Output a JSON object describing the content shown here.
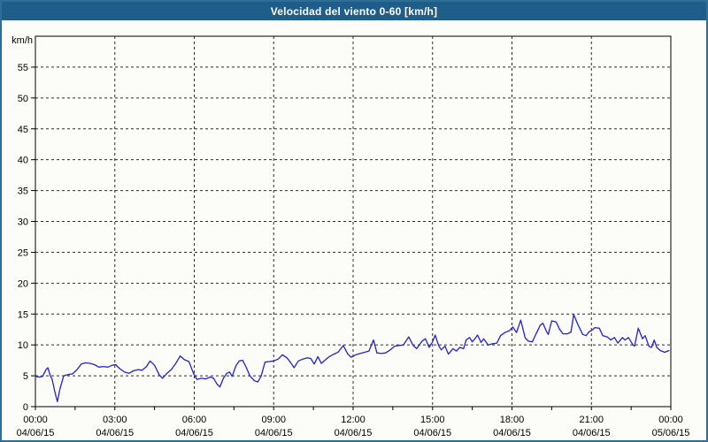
{
  "window": {
    "title": "Velocidad del viento 0-60 [km/h]"
  },
  "colors": {
    "titlebar_bg": "#1f5d8b",
    "titlebar_text": "#ffffff",
    "frame_border": "#2e6e96",
    "chart_bg": "#fcfdf8",
    "grid": "#2b2b2b",
    "axis": "#000000",
    "line": "#2323cb"
  },
  "chart_data": {
    "type": "line",
    "title": "Velocidad del viento 0-60 [km/h]",
    "xlabel": "",
    "ylabel": "km/h",
    "ylim": [
      0,
      60
    ],
    "y_ticks": [
      0,
      5,
      10,
      15,
      20,
      25,
      30,
      35,
      40,
      45,
      50,
      55
    ],
    "xlim_hours": [
      0,
      24
    ],
    "grid": "dashed",
    "legend_position": "none",
    "x_ticks": [
      {
        "hour": 0,
        "time": "00:00",
        "date": "04/06/15"
      },
      {
        "hour": 3,
        "time": "03:00",
        "date": "04/06/15"
      },
      {
        "hour": 6,
        "time": "06:00",
        "date": "04/06/15"
      },
      {
        "hour": 9,
        "time": "09:00",
        "date": "04/06/15"
      },
      {
        "hour": 12,
        "time": "12:00",
        "date": "04/06/15"
      },
      {
        "hour": 15,
        "time": "15:00",
        "date": "04/06/15"
      },
      {
        "hour": 18,
        "time": "18:00",
        "date": "04/06/15"
      },
      {
        "hour": 21,
        "time": "21:00",
        "date": "04/06/15"
      },
      {
        "hour": 24,
        "time": "00:00",
        "date": "05/06/15"
      }
    ],
    "minor_x_tick_step_hours": 1.5,
    "series": [
      {
        "name": "Velocidad del viento",
        "color": "#2323cb",
        "units": "km/h",
        "points": [
          [
            0.0,
            4.9
          ],
          [
            0.17,
            4.8
          ],
          [
            0.27,
            4.9
          ],
          [
            0.4,
            6.0
          ],
          [
            0.47,
            6.3
          ],
          [
            0.57,
            4.9
          ],
          [
            0.63,
            4.5
          ],
          [
            0.73,
            2.5
          ],
          [
            0.83,
            0.8
          ],
          [
            0.93,
            2.9
          ],
          [
            1.07,
            5.0
          ],
          [
            1.23,
            5.2
          ],
          [
            1.4,
            5.3
          ],
          [
            1.57,
            6.0
          ],
          [
            1.73,
            6.9
          ],
          [
            1.9,
            7.1
          ],
          [
            2.07,
            7.0
          ],
          [
            2.23,
            6.8
          ],
          [
            2.4,
            6.4
          ],
          [
            2.57,
            6.5
          ],
          [
            2.73,
            6.4
          ],
          [
            2.9,
            6.7
          ],
          [
            3.03,
            6.8
          ],
          [
            3.2,
            6.1
          ],
          [
            3.37,
            5.6
          ],
          [
            3.53,
            5.4
          ],
          [
            3.7,
            5.8
          ],
          [
            3.87,
            6.0
          ],
          [
            4.03,
            5.9
          ],
          [
            4.2,
            6.5
          ],
          [
            4.33,
            7.4
          ],
          [
            4.5,
            6.7
          ],
          [
            4.67,
            5.2
          ],
          [
            4.8,
            4.6
          ],
          [
            4.97,
            5.4
          ],
          [
            5.13,
            6.0
          ],
          [
            5.3,
            7.0
          ],
          [
            5.47,
            8.2
          ],
          [
            5.63,
            7.6
          ],
          [
            5.8,
            7.3
          ],
          [
            5.97,
            5.4
          ],
          [
            6.1,
            4.4
          ],
          [
            6.27,
            4.6
          ],
          [
            6.43,
            4.5
          ],
          [
            6.6,
            4.8
          ],
          [
            6.73,
            4.6
          ],
          [
            6.87,
            3.6
          ],
          [
            6.97,
            3.2
          ],
          [
            7.1,
            4.6
          ],
          [
            7.23,
            5.4
          ],
          [
            7.33,
            5.6
          ],
          [
            7.43,
            4.9
          ],
          [
            7.57,
            6.6
          ],
          [
            7.7,
            7.4
          ],
          [
            7.83,
            7.5
          ],
          [
            7.97,
            6.3
          ],
          [
            8.1,
            5.0
          ],
          [
            8.27,
            4.2
          ],
          [
            8.4,
            4.0
          ],
          [
            8.53,
            5.0
          ],
          [
            8.67,
            7.2
          ],
          [
            8.83,
            7.3
          ],
          [
            9.0,
            7.4
          ],
          [
            9.17,
            7.7
          ],
          [
            9.33,
            8.4
          ],
          [
            9.5,
            7.9
          ],
          [
            9.63,
            7.2
          ],
          [
            9.77,
            6.3
          ],
          [
            9.93,
            7.4
          ],
          [
            10.1,
            7.7
          ],
          [
            10.27,
            7.9
          ],
          [
            10.4,
            7.8
          ],
          [
            10.53,
            6.9
          ],
          [
            10.67,
            8.1
          ],
          [
            10.8,
            7.0
          ],
          [
            10.93,
            7.5
          ],
          [
            11.1,
            8.1
          ],
          [
            11.27,
            8.5
          ],
          [
            11.43,
            8.8
          ],
          [
            11.63,
            9.9
          ],
          [
            11.8,
            8.5
          ],
          [
            11.93,
            8.0
          ],
          [
            12.1,
            8.4
          ],
          [
            12.27,
            8.6
          ],
          [
            12.43,
            8.8
          ],
          [
            12.6,
            9.0
          ],
          [
            12.77,
            10.8
          ],
          [
            12.9,
            8.7
          ],
          [
            13.07,
            8.6
          ],
          [
            13.23,
            8.7
          ],
          [
            13.4,
            9.2
          ],
          [
            13.57,
            9.8
          ],
          [
            13.73,
            9.9
          ],
          [
            13.9,
            10.0
          ],
          [
            14.1,
            11.3
          ],
          [
            14.27,
            9.9
          ],
          [
            14.4,
            9.4
          ],
          [
            14.6,
            10.6
          ],
          [
            14.73,
            11.0
          ],
          [
            14.87,
            9.6
          ],
          [
            15.0,
            10.5
          ],
          [
            15.1,
            11.6
          ],
          [
            15.23,
            9.9
          ],
          [
            15.33,
            9.2
          ],
          [
            15.47,
            9.8
          ],
          [
            15.6,
            8.5
          ],
          [
            15.77,
            9.4
          ],
          [
            15.9,
            9.0
          ],
          [
            16.03,
            9.6
          ],
          [
            16.17,
            9.4
          ],
          [
            16.27,
            10.8
          ],
          [
            16.4,
            11.2
          ],
          [
            16.5,
            10.5
          ],
          [
            16.6,
            11.0
          ],
          [
            16.7,
            11.6
          ],
          [
            16.83,
            10.4
          ],
          [
            16.93,
            11.0
          ],
          [
            17.1,
            10.0
          ],
          [
            17.27,
            10.2
          ],
          [
            17.43,
            10.3
          ],
          [
            17.57,
            11.5
          ],
          [
            17.73,
            12.0
          ],
          [
            17.9,
            12.3
          ],
          [
            18.03,
            12.9
          ],
          [
            18.17,
            12.0
          ],
          [
            18.33,
            14.0
          ],
          [
            18.5,
            11.1
          ],
          [
            18.63,
            10.6
          ],
          [
            18.77,
            10.5
          ],
          [
            18.9,
            11.7
          ],
          [
            19.07,
            13.2
          ],
          [
            19.17,
            13.5
          ],
          [
            19.3,
            12.2
          ],
          [
            19.37,
            11.7
          ],
          [
            19.5,
            13.9
          ],
          [
            19.67,
            13.7
          ],
          [
            19.8,
            12.5
          ],
          [
            19.93,
            11.8
          ],
          [
            20.1,
            11.8
          ],
          [
            20.23,
            12.1
          ],
          [
            20.33,
            14.9
          ],
          [
            20.5,
            13.2
          ],
          [
            20.67,
            11.7
          ],
          [
            20.8,
            11.5
          ],
          [
            20.9,
            12.1
          ],
          [
            21.03,
            12.4
          ],
          [
            21.13,
            12.8
          ],
          [
            21.3,
            12.7
          ],
          [
            21.43,
            11.5
          ],
          [
            21.6,
            11.3
          ],
          [
            21.73,
            10.8
          ],
          [
            21.87,
            11.2
          ],
          [
            22.0,
            10.3
          ],
          [
            22.17,
            11.2
          ],
          [
            22.27,
            10.8
          ],
          [
            22.4,
            11.2
          ],
          [
            22.57,
            10.0
          ],
          [
            22.63,
            9.8
          ],
          [
            22.77,
            12.7
          ],
          [
            22.93,
            11.0
          ],
          [
            23.03,
            11.5
          ],
          [
            23.17,
            9.8
          ],
          [
            23.27,
            9.6
          ],
          [
            23.37,
            10.8
          ],
          [
            23.47,
            9.6
          ],
          [
            23.6,
            9.1
          ],
          [
            23.77,
            8.8
          ],
          [
            23.93,
            9.1
          ]
        ]
      }
    ]
  }
}
